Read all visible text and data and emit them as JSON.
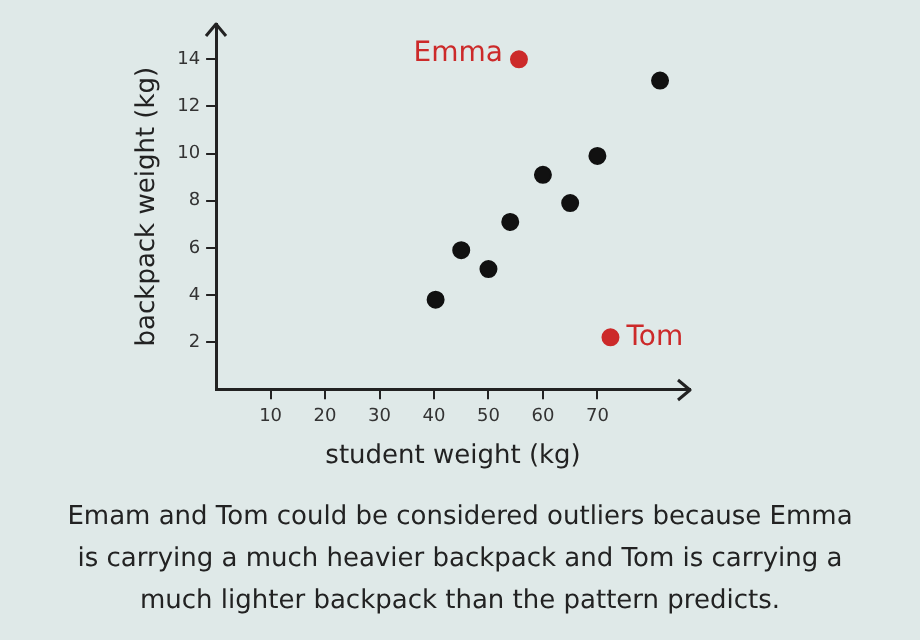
{
  "chart_data": {
    "type": "scatter",
    "xlabel": "student weight (kg)",
    "ylabel": "backpack weight (kg)",
    "series": [
      {
        "color": "#111111",
        "x": [
          40.3,
          45,
          50,
          54,
          60,
          65,
          70,
          81.5
        ],
        "values": [
          3.8,
          5.9,
          5.1,
          7.1,
          9.1,
          7.9,
          9.9,
          13.1
        ]
      },
      {
        "color": "#cc2a2a",
        "x": [
          55.6,
          72.4
        ],
        "values": [
          14,
          2.2
        ]
      }
    ],
    "xlim": [
      0,
      87
    ],
    "xticks": [
      10,
      20,
      30,
      40,
      50,
      60,
      70
    ],
    "ylim": [
      0,
      15.5
    ],
    "yticks": [
      2,
      4,
      6,
      8,
      10,
      12,
      14
    ],
    "marker": "circle",
    "grid": false,
    "legend": false,
    "annotations": [
      {
        "text": "Emma",
        "x": 55.6,
        "y": 14
      },
      {
        "text": "Tom",
        "x": 72.4,
        "y": 2.2
      },
      "Emam and Tom could be considered outliers because Emma is carrying a much heavier backpack and Tom is carrying a much lighter backpack than the pattern predicts."
    ]
  }
}
